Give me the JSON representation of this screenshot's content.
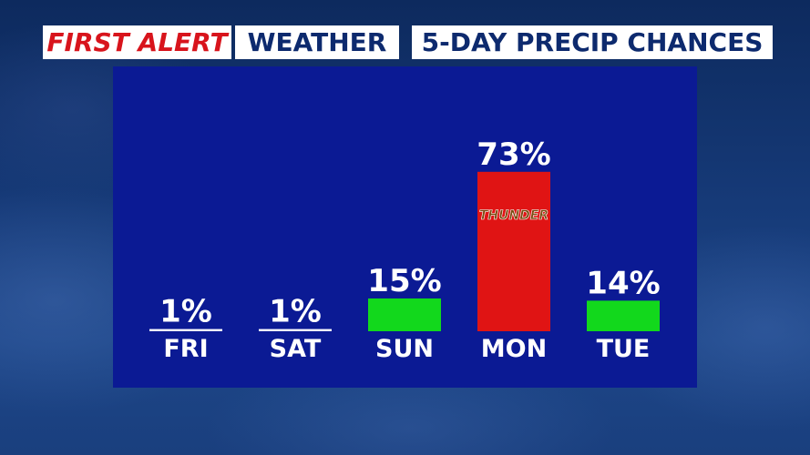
{
  "header": {
    "first": "FIRST ALERT",
    "weather": "WEATHER",
    "title": "5-DAY PRECIP CHANCES"
  },
  "colors": {
    "panel": "#0b1a94",
    "low_bar": "#12d81c",
    "high_bar": "#e01414",
    "brand_red": "#d8141c",
    "brand_navy": "#0d2a6e"
  },
  "chart_data": {
    "type": "bar",
    "title": "5-DAY PRECIP CHANCES",
    "categories": [
      "FRI",
      "SAT",
      "SUN",
      "MON",
      "TUE"
    ],
    "values": [
      1,
      1,
      15,
      73,
      14
    ],
    "value_labels": [
      "1%",
      "1%",
      "15%",
      "73%",
      "14%"
    ],
    "bar_colors": [
      "#ffffff",
      "#ffffff",
      "#12d81c",
      "#e01414",
      "#12d81c"
    ],
    "annotations": [
      {
        "category": "MON",
        "text": "THUNDER"
      }
    ],
    "ylim": [
      0,
      100
    ],
    "grid": false,
    "legend": "none"
  }
}
